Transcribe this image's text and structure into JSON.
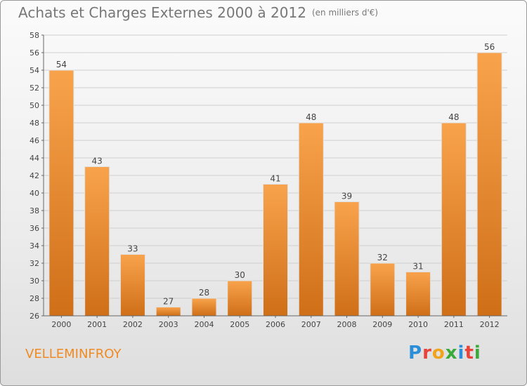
{
  "header": {
    "title": "Achats et Charges Externes 2000 à 2012",
    "subtitle": "(en milliers d'€)"
  },
  "footer": {
    "commune": "VELLEMINFROY",
    "brand": "Proxiti"
  },
  "colors": {
    "bar_light": "#f8a34c",
    "bar_dark": "#cf6f18",
    "title": "#777777",
    "commune": "#f08a24"
  },
  "chart_data": {
    "type": "bar",
    "title": "Achats et Charges Externes 2000 à 2012",
    "subtitle": "(en milliers d'€)",
    "categories": [
      "2000",
      "2001",
      "2002",
      "2003",
      "2004",
      "2005",
      "2006",
      "2007",
      "2008",
      "2009",
      "2010",
      "2011",
      "2012"
    ],
    "values": [
      54,
      43,
      33,
      27,
      28,
      30,
      41,
      48,
      39,
      32,
      31,
      48,
      56
    ],
    "ylim": [
      26,
      58
    ],
    "yticks": [
      26,
      28,
      30,
      32,
      34,
      36,
      38,
      40,
      42,
      44,
      46,
      48,
      50,
      52,
      54,
      56,
      58
    ],
    "grid": true,
    "data_labels": true
  }
}
